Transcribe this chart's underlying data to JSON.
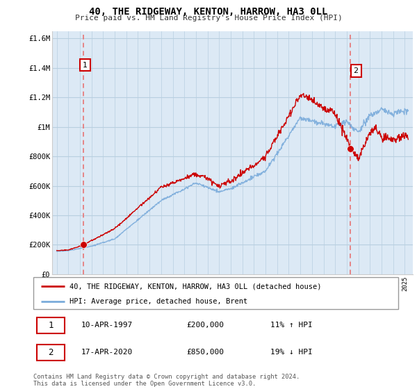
{
  "title": "40, THE RIDGEWAY, KENTON, HARROW, HA3 0LL",
  "subtitle": "Price paid vs. HM Land Registry's House Price Index (HPI)",
  "ylabel_ticks": [
    "£0",
    "£200K",
    "£400K",
    "£600K",
    "£800K",
    "£1M",
    "£1.2M",
    "£1.4M",
    "£1.6M"
  ],
  "ytick_values": [
    0,
    200000,
    400000,
    600000,
    800000,
    1000000,
    1200000,
    1400000,
    1600000
  ],
  "ylim": [
    0,
    1650000
  ],
  "year_start": 1995,
  "year_end": 2025,
  "sale1_year": 1997.28,
  "sale1_price": 200000,
  "sale2_year": 2020.29,
  "sale2_price": 850000,
  "legend_line1": "40, THE RIDGEWAY, KENTON, HARROW, HA3 0LL (detached house)",
  "legend_line2": "HPI: Average price, detached house, Brent",
  "annotation1_label": "1",
  "annotation1_date": "10-APR-1997",
  "annotation1_price": "£200,000",
  "annotation1_hpi": "11% ↑ HPI",
  "annotation2_label": "2",
  "annotation2_date": "17-APR-2020",
  "annotation2_price": "£850,000",
  "annotation2_hpi": "19% ↓ HPI",
  "footer": "Contains HM Land Registry data © Crown copyright and database right 2024.\nThis data is licensed under the Open Government Licence v3.0.",
  "line_color_property": "#cc0000",
  "line_color_hpi": "#7aabdb",
  "vline_color": "#e87474",
  "dot_color_sale1": "#cc0000",
  "dot_color_sale2": "#cc0000",
  "background_color": "#ffffff",
  "chart_bg_color": "#dce9f5",
  "grid_color": "#b8cfe0",
  "box_edge_color": "#cc0000"
}
